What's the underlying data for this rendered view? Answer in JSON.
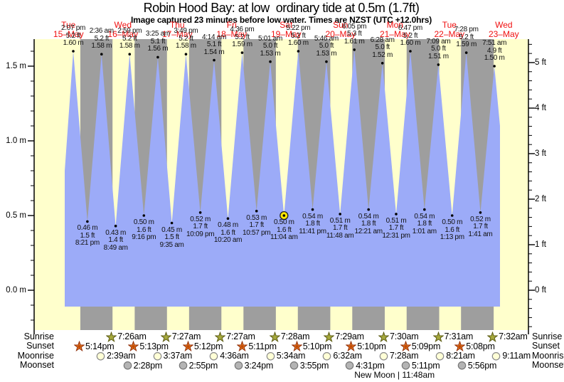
{
  "title": "Robin Hood Bay: at low  ordinary tide at 0.5m (1.7ft)",
  "subtitle": "Image captured 23 minutes before low water. Times are NZST (UTC +12.0hrs)",
  "colors": {
    "page_bg": "#ffffff",
    "day_band": "#ffffcc",
    "night_band": "#9e9e9e",
    "tide_fill": "#9cabf8",
    "axis": "#000000",
    "date_label": "#f01010",
    "tide_text": "#111111",
    "current_marker": "#ffe800",
    "sunrise_star": "#a6a93c",
    "sunrise_star_stroke": "#5c5c14",
    "sunset_star": "#ec7c23",
    "sunset_star_stroke": "#8f2e08",
    "sunset_star_core": "#c24a04",
    "moonrise_circle": "#ffffd6",
    "moonrise_circle_stroke": "#8a8a8a",
    "moonset_circle": "#b4b4b4",
    "moonset_circle_stroke": "#777777"
  },
  "days": [
    {
      "name": "Tue",
      "date": "15–May"
    },
    {
      "name": "Wed",
      "date": "16–May"
    },
    {
      "name": "Thu",
      "date": "17–May"
    },
    {
      "name": "Fri",
      "date": "18–May"
    },
    {
      "name": "Sat",
      "date": "19–May"
    },
    {
      "name": "Sun",
      "date": "20–May"
    },
    {
      "name": "Mon",
      "date": "21–May"
    },
    {
      "name": "Tue",
      "date": "22–May"
    },
    {
      "name": "Wed",
      "date": "23–May"
    }
  ],
  "chart_data": {
    "type": "area",
    "title": "Robin Hood Bay: at low  ordinary tide at 0.5m (1.7ft)",
    "x_axis": "time (Tue 15-May to Wed 23-May, NZST)",
    "y_axis_left": {
      "unit": "m",
      "labels": [
        "1.5 m",
        "1.0 m",
        "0.5 m",
        "0.0 m"
      ],
      "values": [
        1.5,
        1.0,
        0.5,
        0.0
      ]
    },
    "y_axis_right": {
      "unit": "ft",
      "labels": [
        "5 ft",
        "4 ft",
        "3 ft",
        "2 ft",
        "1 ft",
        "0 ft"
      ],
      "values": [
        5,
        4,
        3,
        2,
        1,
        0
      ]
    },
    "tide_events": [
      {
        "day": 0,
        "time": "2:07 pm",
        "type": "high",
        "m": 1.6,
        "ft": 5.2,
        "m_label": "1.60 m",
        "ft_label": "5.2 ft"
      },
      {
        "day": 0,
        "time": "8:21 pm",
        "type": "low",
        "m": 0.46,
        "ft": 1.5,
        "m_label": "0.46 m",
        "ft_label": "1.5 ft"
      },
      {
        "day": 1,
        "time": "2:36 am",
        "type": "high",
        "m": 1.58,
        "ft": 5.2,
        "m_label": "1.58 m",
        "ft_label": "5.2 ft"
      },
      {
        "day": 1,
        "time": "8:49 am",
        "type": "low",
        "m": 0.43,
        "ft": 1.4,
        "m_label": "0.43 m",
        "ft_label": "1.4 ft"
      },
      {
        "day": 1,
        "time": "2:59 pm",
        "type": "high",
        "m": 1.58,
        "ft": 5.2,
        "m_label": "1.58 m",
        "ft_label": "5.2 ft"
      },
      {
        "day": 1,
        "time": "9:16 pm",
        "type": "low",
        "m": 0.5,
        "ft": 1.6,
        "m_label": "0.50 m",
        "ft_label": "1.6 ft"
      },
      {
        "day": 2,
        "time": "3:25 am",
        "type": "high",
        "m": 1.56,
        "ft": 5.1,
        "m_label": "1.56 m",
        "ft_label": "5.1 ft"
      },
      {
        "day": 2,
        "time": "9:35 am",
        "type": "low",
        "m": 0.45,
        "ft": 1.5,
        "m_label": "0.45 m",
        "ft_label": "1.5 ft"
      },
      {
        "day": 2,
        "time": "3:49 pm",
        "type": "high",
        "m": 1.58,
        "ft": 5.2,
        "m_label": "1.58 m",
        "ft_label": "5.2 ft"
      },
      {
        "day": 2,
        "time": "10:09 pm",
        "type": "low",
        "m": 0.52,
        "ft": 1.7,
        "m_label": "0.52 m",
        "ft_label": "1.7 ft"
      },
      {
        "day": 3,
        "time": "4:14 am",
        "type": "high",
        "m": 1.54,
        "ft": 5.1,
        "m_label": "1.54 m",
        "ft_label": "5.1 ft"
      },
      {
        "day": 3,
        "time": "10:20 am",
        "type": "low",
        "m": 0.48,
        "ft": 1.6,
        "m_label": "0.48 m",
        "ft_label": "1.6 ft"
      },
      {
        "day": 3,
        "time": "4:36 pm",
        "type": "high",
        "m": 1.59,
        "ft": 5.2,
        "m_label": "1.59 m",
        "ft_label": "5.2 ft"
      },
      {
        "day": 3,
        "time": "10:57 pm",
        "type": "low",
        "m": 0.53,
        "ft": 1.7,
        "m_label": "0.53 m",
        "ft_label": "1.7 ft"
      },
      {
        "day": 4,
        "time": "5:01 am",
        "type": "high",
        "m": 1.53,
        "ft": 5.0,
        "m_label": "1.53 m",
        "ft_label": "5.0 ft"
      },
      {
        "day": 4,
        "time": "11:04 am",
        "type": "low",
        "m": 0.5,
        "ft": 1.6,
        "m_label": "0.50 m",
        "ft_label": "1.6 ft",
        "current": true
      },
      {
        "day": 4,
        "time": "5:22 pm",
        "type": "high",
        "m": 1.6,
        "ft": 5.2,
        "m_label": "1.60 m",
        "ft_label": "5.2 ft"
      },
      {
        "day": 4,
        "time": "11:41 pm",
        "type": "low",
        "m": 0.54,
        "ft": 1.8,
        "m_label": "0.54 m",
        "ft_label": "1.8 ft"
      },
      {
        "day": 5,
        "time": "5:46 am",
        "type": "high",
        "m": 1.53,
        "ft": 5.0,
        "m_label": "1.53 m",
        "ft_label": "5.0 ft"
      },
      {
        "day": 5,
        "time": "11:48 am",
        "type": "low",
        "m": 0.51,
        "ft": 1.7,
        "m_label": "0.51 m",
        "ft_label": "1.7 ft"
      },
      {
        "day": 5,
        "time": "6:05 pm",
        "type": "high",
        "m": 1.61,
        "ft": 5.3,
        "m_label": "1.61 m",
        "ft_label": "5.3 ft"
      },
      {
        "day": 6,
        "time": "12:21 am",
        "type": "low",
        "m": 0.54,
        "ft": 1.8,
        "m_label": "0.54 m",
        "ft_label": "1.8 ft"
      },
      {
        "day": 6,
        "time": "6:28 am",
        "type": "high",
        "m": 1.52,
        "ft": 5.0,
        "m_label": "1.52 m",
        "ft_label": "5.0 ft"
      },
      {
        "day": 6,
        "time": "12:31 pm",
        "type": "low",
        "m": 0.51,
        "ft": 1.7,
        "m_label": "0.51 m",
        "ft_label": "1.7 ft"
      },
      {
        "day": 6,
        "time": "6:47 pm",
        "type": "high",
        "m": 1.6,
        "ft": 5.2,
        "m_label": "1.60 m",
        "ft_label": "5.2 ft"
      },
      {
        "day": 7,
        "time": "1:01 am",
        "type": "low",
        "m": 0.54,
        "ft": 1.8,
        "m_label": "0.54 m",
        "ft_label": "1.8 ft"
      },
      {
        "day": 7,
        "time": "7:09 am",
        "type": "high",
        "m": 1.51,
        "ft": 5.0,
        "m_label": "1.51 m",
        "ft_label": "5.0 ft"
      },
      {
        "day": 7,
        "time": "1:13 pm",
        "type": "low",
        "m": 0.5,
        "ft": 1.6,
        "m_label": "0.50 m",
        "ft_label": "1.6 ft"
      },
      {
        "day": 7,
        "time": "7:28 pm",
        "type": "high",
        "m": 1.59,
        "ft": 5.2,
        "m_label": "1.59 m",
        "ft_label": "5.2 ft"
      },
      {
        "day": 8,
        "time": "1:41 am",
        "type": "low",
        "m": 0.52,
        "ft": 1.7,
        "m_label": "0.52 m",
        "ft_label": "1.7 ft"
      },
      {
        "day": 8,
        "time": "7:51 am",
        "type": "high",
        "m": 1.5,
        "ft": 4.9,
        "m_label": "1.50 m",
        "ft_label": "4.9 ft"
      }
    ],
    "current_time_marker": {
      "day": 4,
      "time": "11:04 am",
      "note": "yellow circle at the 11:04 am low tide"
    }
  },
  "almanac": {
    "rows": [
      {
        "id": "sunrise",
        "label": "Sunrise",
        "icon": "sunrise-star-icon",
        "events": [
          {
            "day": 1,
            "time": "7:26am"
          },
          {
            "day": 2,
            "time": "7:27am"
          },
          {
            "day": 3,
            "time": "7:27am"
          },
          {
            "day": 4,
            "time": "7:28am"
          },
          {
            "day": 5,
            "time": "7:29am"
          },
          {
            "day": 6,
            "time": "7:30am"
          },
          {
            "day": 7,
            "time": "7:31am"
          },
          {
            "day": 8,
            "time": "7:32am"
          }
        ]
      },
      {
        "id": "sunset",
        "label": "Sunset",
        "icon": "sunset-star-icon",
        "events": [
          {
            "day": 0,
            "time": "5:14pm"
          },
          {
            "day": 1,
            "time": "5:13pm"
          },
          {
            "day": 2,
            "time": "5:12pm"
          },
          {
            "day": 3,
            "time": "5:11pm"
          },
          {
            "day": 4,
            "time": "5:10pm"
          },
          {
            "day": 5,
            "time": "5:10pm"
          },
          {
            "day": 6,
            "time": "5:09pm"
          },
          {
            "day": 7,
            "time": "5:08pm"
          }
        ]
      },
      {
        "id": "moonrise",
        "label": "Moonrise",
        "icon": "moonrise-circle-icon",
        "events": [
          {
            "day": 1,
            "time": "2:39am"
          },
          {
            "day": 2,
            "time": "3:37am"
          },
          {
            "day": 3,
            "time": "4:36am"
          },
          {
            "day": 4,
            "time": "5:34am"
          },
          {
            "day": 5,
            "time": "6:32am"
          },
          {
            "day": 6,
            "time": "7:28am"
          },
          {
            "day": 7,
            "time": "8:21am"
          },
          {
            "day": 8,
            "time": "9:11am"
          }
        ]
      },
      {
        "id": "moonset",
        "label": "Moonset",
        "icon": "moonset-circle-icon",
        "events": [
          {
            "day": 1,
            "time": "2:28pm"
          },
          {
            "day": 2,
            "time": "2:55pm"
          },
          {
            "day": 3,
            "time": "3:24pm"
          },
          {
            "day": 4,
            "time": "3:55pm"
          },
          {
            "day": 5,
            "time": "4:31pm"
          },
          {
            "day": 6,
            "time": "5:11pm"
          },
          {
            "day": 7,
            "time": "5:56pm"
          }
        ]
      }
    ],
    "moon_phase": {
      "text": "New Moon | 11:48am",
      "day": 6,
      "time": "11:48am"
    }
  }
}
